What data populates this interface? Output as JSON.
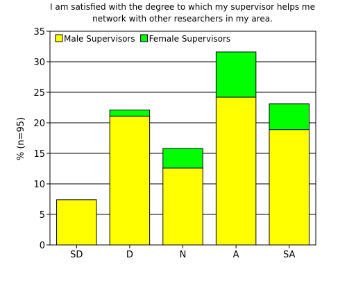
{
  "chart_data": {
    "type": "bar",
    "stacked": true,
    "title_lines": [
      "I am satisfied with the degree to which my supervisor helps me",
      "network with other researchers in my area."
    ],
    "xlabel": "",
    "ylabel": "% (n=95)",
    "ylim": [
      0,
      35
    ],
    "yticks": [
      0,
      5,
      10,
      15,
      20,
      25,
      30,
      35
    ],
    "grid": true,
    "legend_position": "top-left",
    "categories": [
      "SD",
      "D",
      "N",
      "A",
      "SA"
    ],
    "series": [
      {
        "name": "Male Supervisors",
        "color": "#ffff00",
        "values": [
          7.4,
          21.1,
          12.6,
          24.2,
          18.9
        ]
      },
      {
        "name": "Female Supervisors",
        "color": "#00ff00",
        "values": [
          0.0,
          1.0,
          3.2,
          7.4,
          4.2
        ]
      }
    ]
  }
}
